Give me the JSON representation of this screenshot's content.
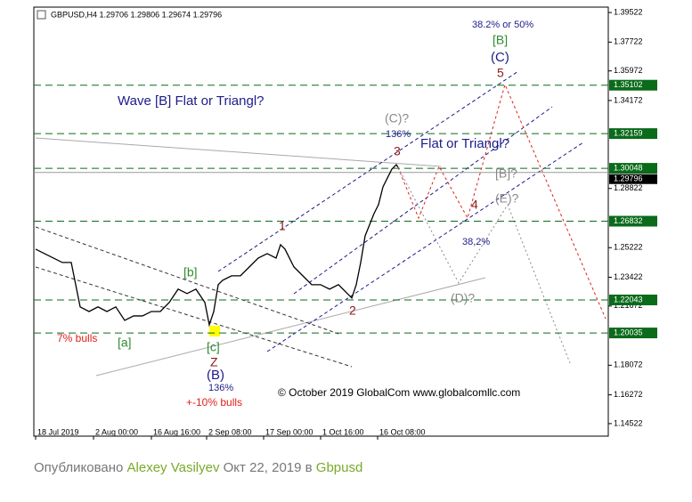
{
  "chart_data": {
    "type": "line",
    "title": "GBPUSD,H4  1.29706 1.29806 1.29674 1.29796",
    "x": [
      0.5,
      3,
      5.5,
      8,
      10.5,
      11.75,
      13,
      15.5,
      18,
      20.5,
      23,
      25.5,
      28,
      30.5,
      33,
      35.5,
      38,
      40.5,
      43,
      45.5,
      48,
      49.25,
      50.5,
      51.75,
      53,
      55.5,
      58,
      60.5,
      63,
      65.5,
      68,
      69.25,
      70.5,
      73,
      75.5,
      78,
      80.5,
      83,
      85.5,
      88,
      89.25,
      90.5,
      91.75,
      93,
      95.5,
      96.75,
      98,
      99.25,
      100.5,
      101.75,
      102.25
    ],
    "series": [
      {
        "color": "#000000",
        "values": [
          1.2513,
          1.2486,
          1.2459,
          1.2432,
          1.2432,
          1.2297,
          1.2162,
          1.2134,
          1.2162,
          1.2134,
          1.2162,
          1.208,
          1.2107,
          1.2107,
          1.2134,
          1.2134,
          1.2189,
          1.227,
          1.2243,
          1.227,
          1.2189,
          1.2053,
          1.2134,
          1.2297,
          1.2324,
          1.2351,
          1.2351,
          1.2405,
          1.2459,
          1.2486,
          1.2459,
          1.254,
          1.2513,
          1.2405,
          1.2351,
          1.2297,
          1.2297,
          1.227,
          1.2297,
          1.2243,
          1.2216,
          1.2297,
          1.2432,
          1.2594,
          1.273,
          1.2784,
          1.2892,
          1.2946,
          1.3,
          1.3027,
          1.3011
        ]
      }
    ],
    "xlim": [
      0,
      161.25
    ],
    "xticks": [
      {
        "value": 0.5,
        "label": "18 Jul 2019"
      },
      {
        "value": 16.75,
        "label": "2 Aug 00:00"
      },
      {
        "value": 33,
        "label": "16 Aug 16:00"
      },
      {
        "value": 48.5,
        "label": "2 Sep 08:00"
      },
      {
        "value": 64.5,
        "label": "17 Sep 00:00"
      },
      {
        "value": 80.5,
        "label": "1 Oct 16:00"
      },
      {
        "value": 96.5,
        "label": "16 Oct 08:00"
      }
    ],
    "ylim": [
      1.1376,
      1.3985
    ],
    "yticks": [
      1.39522,
      1.37722,
      1.35972,
      1.34172,
      1.28822,
      1.25222,
      1.23422,
      1.21672,
      1.18072,
      1.16272,
      1.14522
    ],
    "levels": [
      1.35102,
      1.32159,
      1.30048,
      1.26832,
      1.22043,
      1.20035
    ],
    "level_color": "#0a6b1a",
    "last_price": 1.29796,
    "annotations": [
      {
        "text": "Wave [B] Flat or Triangl?",
        "color": "#1c1c8a"
      },
      {
        "text": "Flat or Triangl?",
        "color": "#1c1c8a"
      },
      {
        "text": "38.2% or 50%",
        "color": "#1c1c8a"
      },
      {
        "text": "[B]",
        "color": "#2e8b2e"
      },
      {
        "text": "(C)",
        "color": "#1c1c8a"
      },
      {
        "text": "5",
        "color": "#8b1a1a"
      },
      {
        "text": "(C)?",
        "color": "#888888"
      },
      {
        "text": "136%",
        "color": "#1c1c8a"
      },
      {
        "text": "3",
        "color": "#8b1a1a"
      },
      {
        "text": "[B]?",
        "color": "#888888"
      },
      {
        "text": "(E)?",
        "color": "#888888"
      },
      {
        "text": "4",
        "color": "#8b1a1a"
      },
      {
        "text": "38,2%",
        "color": "#1c1c8a"
      },
      {
        "text": "1",
        "color": "#8b1a1a"
      },
      {
        "text": "[b]",
        "color": "#2e8b2e"
      },
      {
        "text": "(D)?",
        "color": "#888888"
      },
      {
        "text": "2",
        "color": "#8b1a1a"
      },
      {
        "text": "7% bulls",
        "color": "#e0201a"
      },
      {
        "text": "[a]",
        "color": "#2e8b2e"
      },
      {
        "text": "[c]",
        "color": "#2e8b2e"
      },
      {
        "text": "Z",
        "color": "#8b1a1a"
      },
      {
        "text": "(B)",
        "color": "#1c1c8a"
      },
      {
        "text": "136%",
        "color": "#1c1c8a"
      },
      {
        "text": "+-10% bulls",
        "color": "#e0201a"
      },
      {
        "text": "© October 2019 GlobalCom www.globalcomllc.com",
        "color": "#000000"
      }
    ]
  },
  "footer": {
    "published": "Опубликовано",
    "author": "Alexey Vasilyev",
    "date": "Окт 22, 2019",
    "in": "в",
    "symbol": "Gbpusd"
  }
}
